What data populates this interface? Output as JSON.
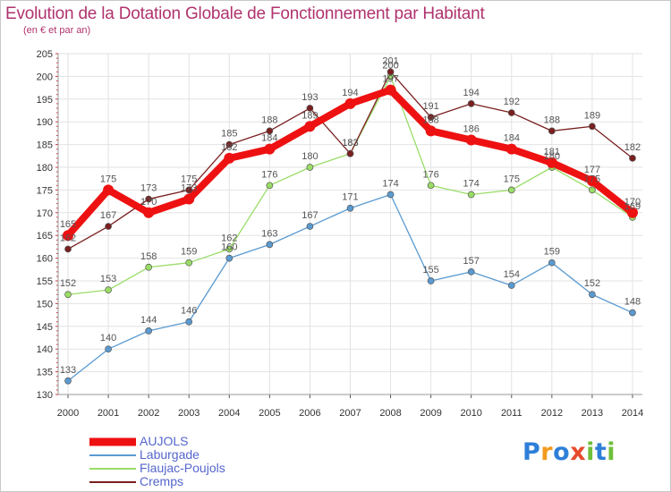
{
  "title": "Evolution de la Dotation Globale de Fonctionnement par Habitant",
  "subtitle": "(en € et par an)",
  "logo": {
    "text": "Proxiti",
    "letters": [
      "P",
      "r",
      "o",
      "x",
      "i",
      "t",
      "i"
    ],
    "colors": [
      "#2e7fd8",
      "#f29a1f",
      "#2e7fd8",
      "#e64b2c",
      "#6fbf3a",
      "#2e7fd8",
      "#6fbf3a"
    ]
  },
  "chart_data": {
    "type": "line",
    "title": "Evolution de la Dotation Globale de Fonctionnement par Habitant",
    "ylabel": "(en € et par an)",
    "x": [
      "2000",
      "2001",
      "2002",
      "2003",
      "2004",
      "2005",
      "2006",
      "2007",
      "2008",
      "2009",
      "2010",
      "2011",
      "2012",
      "2013",
      "2014"
    ],
    "ylim": [
      130,
      205
    ],
    "yticks": [
      130,
      135,
      140,
      145,
      150,
      155,
      160,
      165,
      170,
      175,
      180,
      185,
      190,
      195,
      200,
      205
    ],
    "grid": true,
    "legend": "bottom-left",
    "series": [
      {
        "name": "AUJOLS",
        "color": "#ee1111",
        "values": [
          165,
          175,
          170,
          173,
          182,
          184,
          189,
          194,
          197,
          188,
          186,
          184,
          181,
          177,
          170
        ]
      },
      {
        "name": "Laburgade",
        "color": "#5a9ad0",
        "values": [
          133,
          140,
          144,
          146,
          160,
          163,
          167,
          171,
          174,
          155,
          157,
          154,
          159,
          152,
          148
        ]
      },
      {
        "name": "Flaujac-Poujols",
        "color": "#99dd66",
        "values": [
          152,
          153,
          158,
          159,
          162,
          176,
          180,
          183,
          200,
          176,
          174,
          175,
          180,
          175,
          169
        ]
      },
      {
        "name": "Cremps",
        "color": "#7a1f1f",
        "values": [
          162,
          167,
          173,
          175,
          185,
          188,
          193,
          183,
          201,
          191,
          194,
          192,
          188,
          189,
          182
        ]
      }
    ]
  }
}
